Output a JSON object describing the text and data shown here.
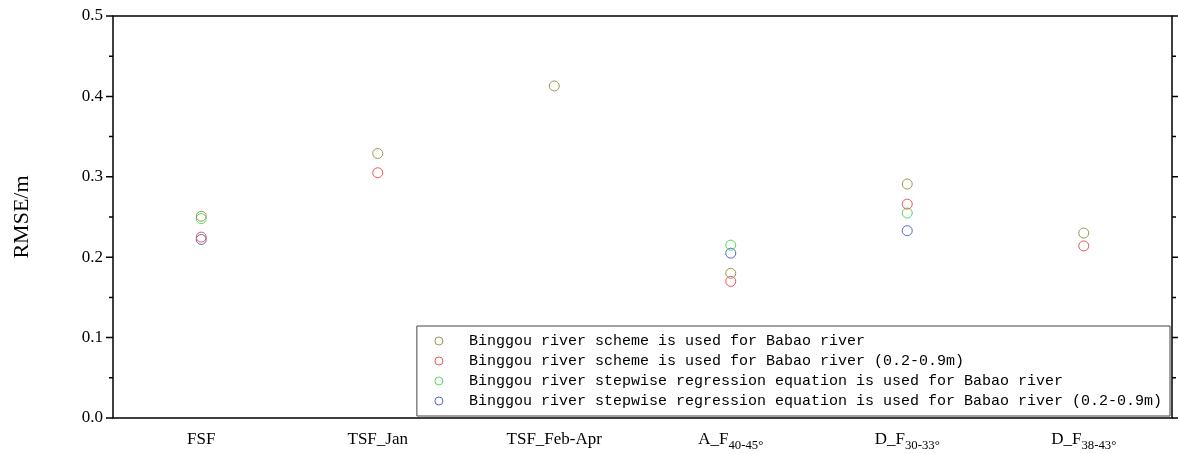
{
  "chart_data": {
    "type": "scatter",
    "ylabel": "RMSE/m",
    "categories": [
      "FSF",
      "TSF_Jan",
      "TSF_Feb-Apr",
      "A_F$_{40-45°}$",
      "D_F$_{30-33°}$",
      "D_F$_{38-43°}$"
    ],
    "series": [
      {
        "name": "Binggou river scheme is used for Babao river",
        "color": "#999955",
        "values": [
          0.251,
          0.329,
          0.413,
          0.18,
          0.291,
          0.23
        ]
      },
      {
        "name": "Binggou river scheme is used for Babao river (0.2-0.9m)",
        "color": "#ee5555",
        "values": [
          0.225,
          0.305,
          null,
          0.17,
          0.266,
          0.214
        ]
      },
      {
        "name": "Binggou river stepwise regression equation is used for Babao river",
        "color": "#55dd55",
        "values": [
          0.248,
          null,
          null,
          0.215,
          0.255,
          null
        ]
      },
      {
        "name": "Binggou river stepwise regression equation is used for Babao river (0.2-0.9m)",
        "color": "#5566cc",
        "values": [
          0.222,
          null,
          null,
          0.205,
          0.233,
          null
        ]
      }
    ],
    "ylim": [
      0,
      0.5
    ],
    "yticks": [
      {
        "value": 0,
        "label": "0.0"
      },
      {
        "value": 0.05,
        "label": null
      },
      {
        "value": 0.1,
        "label": "0.1"
      },
      {
        "value": 0.15,
        "label": null
      },
      {
        "value": 0.2,
        "label": "0.2"
      },
      {
        "value": 0.25,
        "label": null
      },
      {
        "value": 0.3,
        "label": "0.3"
      },
      {
        "value": 0.35,
        "label": null
      },
      {
        "value": 0.4,
        "label": "0.4"
      },
      {
        "value": 0.45,
        "label": null
      },
      {
        "value": 0.5,
        "label": "0.5"
      }
    ],
    "grid": false,
    "legend": "bottom right",
    "marker": "circle"
  }
}
